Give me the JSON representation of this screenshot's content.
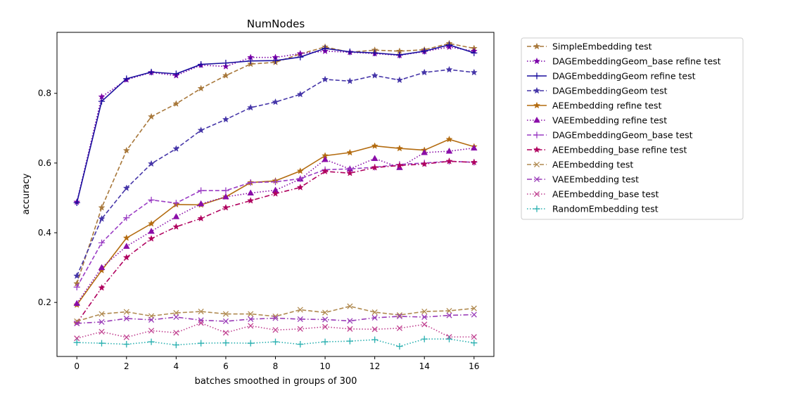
{
  "chart_data": {
    "type": "line",
    "title": "NumNodes",
    "xlabel": "batches smoothed in groups of 300",
    "ylabel": "accuracy",
    "xlim": [
      -0.8,
      16.8
    ],
    "ylim": [
      0.045,
      0.975
    ],
    "xticks": [
      0,
      2,
      4,
      6,
      8,
      10,
      12,
      14,
      16
    ],
    "yticks": [
      0.2,
      0.4,
      0.6,
      0.8
    ],
    "ytick_labels": [
      "0.2",
      "0.4",
      "0.6",
      "0.8"
    ],
    "x": [
      0,
      1,
      2,
      3,
      4,
      5,
      6,
      7,
      8,
      9,
      10,
      11,
      12,
      13,
      14,
      15,
      16
    ],
    "legend_position": "outside-right",
    "grid": false,
    "series": [
      {
        "name": "SimpleEmbedding test",
        "color": "#a8783b",
        "dash": "dashed",
        "marker": "star",
        "values": [
          0.254,
          0.472,
          0.636,
          0.733,
          0.77,
          0.814,
          0.851,
          0.884,
          0.889,
          0.913,
          0.933,
          0.918,
          0.924,
          0.921,
          0.925,
          0.943,
          0.929
        ]
      },
      {
        "name": "DAGEmbeddingGeom_base refine test",
        "color": "#7b00a8",
        "dash": "dotted",
        "marker": "star",
        "values": [
          0.488,
          0.79,
          0.839,
          0.86,
          0.851,
          0.881,
          0.877,
          0.903,
          0.903,
          0.914,
          0.921,
          0.918,
          0.914,
          0.909,
          0.92,
          0.933,
          0.921
        ]
      },
      {
        "name": "DAGEmbeddingGeom refine test",
        "color": "#1a0f9e",
        "dash": "solid",
        "marker": "plus",
        "values": [
          0.486,
          0.777,
          0.842,
          0.861,
          0.856,
          0.883,
          0.887,
          0.893,
          0.894,
          0.904,
          0.929,
          0.919,
          0.916,
          0.91,
          0.921,
          0.939,
          0.916
        ]
      },
      {
        "name": "DAGEmbeddingGeom test",
        "color": "#4535a8",
        "dash": "dashed",
        "marker": "star",
        "values": [
          0.276,
          0.44,
          0.528,
          0.598,
          0.641,
          0.694,
          0.725,
          0.759,
          0.775,
          0.797,
          0.84,
          0.835,
          0.851,
          0.838,
          0.86,
          0.868,
          0.86
        ]
      },
      {
        "name": "AEEmbedding refine test",
        "color": "#b36b0f",
        "dash": "solid",
        "marker": "star",
        "values": [
          0.193,
          0.292,
          0.385,
          0.426,
          0.481,
          0.48,
          0.503,
          0.544,
          0.549,
          0.577,
          0.621,
          0.63,
          0.649,
          0.642,
          0.637,
          0.668,
          0.647
        ]
      },
      {
        "name": "VAEEmbedding refine test",
        "color": "#8a0da8",
        "dash": "dotted",
        "marker": "triangle",
        "values": [
          0.197,
          0.3,
          0.361,
          0.404,
          0.446,
          0.483,
          0.503,
          0.514,
          0.522,
          0.554,
          0.61,
          0.583,
          0.613,
          0.587,
          0.63,
          0.634,
          0.643
        ]
      },
      {
        "name": "DAGEmbeddingGeom_base test",
        "color": "#9a3cc4",
        "dash": "dashed",
        "marker": "plus",
        "values": [
          0.244,
          0.371,
          0.443,
          0.494,
          0.485,
          0.521,
          0.521,
          0.544,
          0.546,
          0.555,
          0.581,
          0.583,
          0.588,
          0.596,
          0.6,
          0.605,
          0.602
        ]
      },
      {
        "name": "AEEmbedding_base refine test",
        "color": "#b0005e",
        "dash": "dashdot",
        "marker": "star",
        "values": [
          0.141,
          0.242,
          0.329,
          0.383,
          0.417,
          0.441,
          0.472,
          0.492,
          0.512,
          0.53,
          0.576,
          0.571,
          0.587,
          0.593,
          0.597,
          0.605,
          0.602
        ]
      },
      {
        "name": "AEEmbedding test",
        "color": "#b08a50",
        "dash": "dashed",
        "marker": "x",
        "values": [
          0.146,
          0.167,
          0.173,
          0.161,
          0.17,
          0.174,
          0.167,
          0.167,
          0.16,
          0.179,
          0.171,
          0.189,
          0.172,
          0.164,
          0.174,
          0.176,
          0.183
        ]
      },
      {
        "name": "VAEEmbedding test",
        "color": "#9a3cb8",
        "dash": "dashdot",
        "marker": "x",
        "values": [
          0.14,
          0.144,
          0.154,
          0.15,
          0.158,
          0.149,
          0.146,
          0.152,
          0.155,
          0.152,
          0.151,
          0.147,
          0.156,
          0.16,
          0.158,
          0.163,
          0.165
        ]
      },
      {
        "name": "AEEmbedding_base test",
        "color": "#c04090",
        "dash": "dotted",
        "marker": "x",
        "values": [
          0.097,
          0.116,
          0.1,
          0.119,
          0.113,
          0.141,
          0.113,
          0.133,
          0.121,
          0.124,
          0.13,
          0.124,
          0.123,
          0.126,
          0.137,
          0.101,
          0.101
        ]
      },
      {
        "name": "RandomEmbedding test",
        "color": "#2ab0b0",
        "dash": "dotted",
        "marker": "plus",
        "values": [
          0.085,
          0.083,
          0.08,
          0.087,
          0.078,
          0.083,
          0.084,
          0.083,
          0.087,
          0.08,
          0.087,
          0.089,
          0.093,
          0.074,
          0.095,
          0.095,
          0.084
        ]
      }
    ]
  }
}
